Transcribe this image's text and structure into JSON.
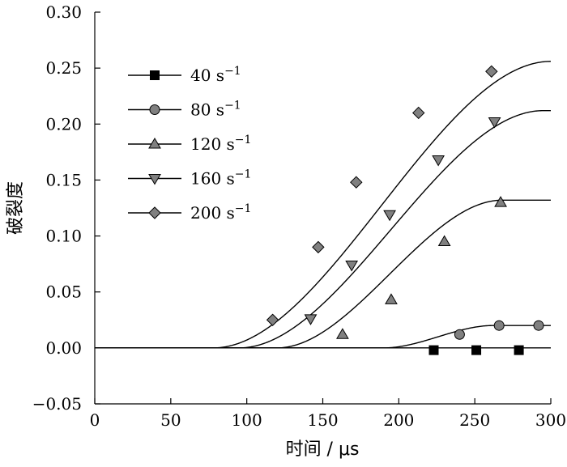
{
  "chart_data": {
    "type": "line",
    "xlabel": "时间 / μs",
    "ylabel": "破裂度",
    "xlim": [
      0,
      300
    ],
    "ylim": [
      -0.05,
      0.3
    ],
    "xticks": [
      "0",
      "50",
      "100",
      "150",
      "200",
      "250",
      "300"
    ],
    "yticks": [
      "−0.05",
      "0.00",
      "0.05",
      "0.10",
      "0.15",
      "0.20",
      "0.25",
      "0.30"
    ],
    "grid": false,
    "legend_position": "top-left",
    "series": [
      {
        "name": "40 s",
        "name_sup": "−1",
        "marker": "square",
        "marker_color": "#000000",
        "curve": {
          "onset": 300,
          "plateau": 0,
          "t_start": 300,
          "t_end": 300
        },
        "points": [
          [
            223,
            -0.002
          ],
          [
            251,
            -0.002
          ],
          [
            279,
            -0.002
          ]
        ]
      },
      {
        "name": "80 s",
        "name_sup": "−1",
        "marker": "circle",
        "marker_color": "#808080",
        "curve": {
          "onset": 190,
          "plateau": 0.02,
          "t_start": 190,
          "t_end": 262
        },
        "points": [
          [
            240,
            0.012
          ],
          [
            266,
            0.02
          ],
          [
            292,
            0.02
          ]
        ]
      },
      {
        "name": "120 s",
        "name_sup": "−1",
        "marker": "triangle-up",
        "marker_color": "#808080",
        "curve": {
          "onset": 120,
          "plateau": 0.132,
          "t_start": 120,
          "t_end": 268
        },
        "points": [
          [
            163,
            0.012
          ],
          [
            195,
            0.043
          ],
          [
            230,
            0.095
          ],
          [
            267,
            0.13
          ]
        ]
      },
      {
        "name": "160 s",
        "name_sup": "−1",
        "marker": "triangle-down",
        "marker_color": "#808080",
        "curve": {
          "onset": 95,
          "plateau": 0.212,
          "t_start": 95,
          "t_end": 295
        },
        "points": [
          [
            142,
            0.026
          ],
          [
            169,
            0.074
          ],
          [
            194,
            0.119
          ],
          [
            226,
            0.168
          ],
          [
            263,
            0.202
          ]
        ]
      },
      {
        "name": "200 s",
        "name_sup": "−1",
        "marker": "diamond",
        "marker_color": "#808080",
        "curve": {
          "onset": 78,
          "plateau": 0.256,
          "t_start": 78,
          "t_end": 300
        },
        "points": [
          [
            117,
            0.025
          ],
          [
            147,
            0.09
          ],
          [
            172,
            0.148
          ],
          [
            213,
            0.21
          ],
          [
            261,
            0.247
          ]
        ]
      }
    ]
  }
}
